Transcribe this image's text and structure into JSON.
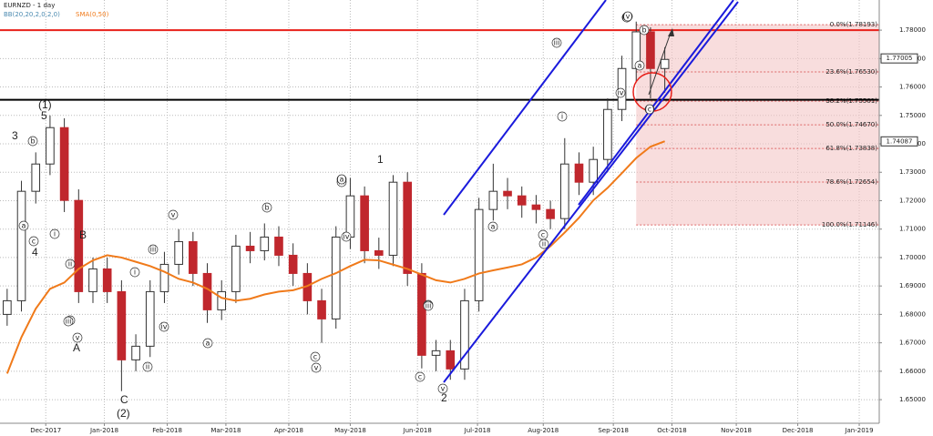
{
  "chart_data": {
    "type": "candlestick",
    "title": "EURNZD - 1 day",
    "indicators": [
      "BB(20,20,2,0,2,0)",
      "SMA(0,50)"
    ],
    "xlim": [
      -0.5,
      61
    ],
    "xticks": [
      {
        "value": 2.7,
        "label": "Dec-2017"
      },
      {
        "value": 6.8,
        "label": "Jan-2018"
      },
      {
        "value": 11.2,
        "label": "Feb-2018"
      },
      {
        "value": 15.3,
        "label": "Mar-2018"
      },
      {
        "value": 19.7,
        "label": "Apr-2018"
      },
      {
        "value": 24.0,
        "label": "May-2018"
      },
      {
        "value": 28.7,
        "label": "Jun-2018"
      },
      {
        "value": 32.9,
        "label": "Jul-2018"
      },
      {
        "value": 37.5,
        "label": "Aug-2018"
      },
      {
        "value": 42.4,
        "label": "Sep-2018"
      },
      {
        "value": 46.5,
        "label": "Oct-2018"
      },
      {
        "value": 51.0,
        "label": "Nov-2018"
      },
      {
        "value": 55.3,
        "label": "Dec-2018"
      },
      {
        "value": 59.6,
        "label": "Jan-2019"
      }
    ],
    "ylim": [
      1.6417,
      1.7906
    ],
    "yticks": [
      {
        "value": 1.65,
        "label": "1.65000"
      },
      {
        "value": 1.66,
        "label": "1.66000"
      },
      {
        "value": 1.67,
        "label": "1.67000"
      },
      {
        "value": 1.68,
        "label": "1.68000"
      },
      {
        "value": 1.69,
        "label": "1.69000"
      },
      {
        "value": 1.7,
        "label": "1.70000"
      },
      {
        "value": 1.71,
        "label": "1.71000"
      },
      {
        "value": 1.72,
        "label": "1.72000"
      },
      {
        "value": 1.73,
        "label": "1.73000"
      },
      {
        "value": 1.74,
        "label": "1.74000"
      },
      {
        "value": 1.75,
        "label": "1.75000"
      },
      {
        "value": 1.76,
        "label": "1.76000"
      },
      {
        "value": 1.77,
        "label": "1.77000"
      },
      {
        "value": 1.78,
        "label": "1.78000"
      }
    ],
    "grid": true,
    "x": [
      0,
      1,
      2,
      3,
      4,
      5,
      6,
      7,
      8,
      9,
      10,
      11,
      12,
      13,
      14,
      15,
      16,
      17,
      18,
      19,
      20,
      21,
      22,
      23,
      24,
      25,
      26,
      27,
      28,
      29,
      30,
      31,
      32,
      33,
      34,
      35,
      36,
      37,
      38,
      39,
      40,
      41,
      42,
      43,
      44,
      45,
      46
    ],
    "open": [
      1.68,
      1.6848,
      1.7233,
      1.7329,
      1.7457,
      1.7201,
      1.688,
      1.696,
      1.688,
      1.664,
      1.6688,
      1.688,
      1.6976,
      1.7056,
      1.6944,
      1.6816,
      1.688,
      1.704,
      1.7024,
      1.7072,
      1.7008,
      1.6944,
      1.6848,
      1.6784,
      1.7072,
      1.7217,
      1.7024,
      1.7008,
      1.7265,
      1.6944,
      1.6656,
      1.6672,
      1.6608,
      1.6848,
      1.7169,
      1.7233,
      1.7217,
      1.7185,
      1.7169,
      1.7137,
      1.7329,
      1.7265,
      1.7345,
      1.7521,
      1.7665,
      1.7794,
      1.7665
    ],
    "high": [
      1.689,
      1.727,
      1.737,
      1.75,
      1.749,
      1.724,
      1.7,
      1.7,
      1.692,
      1.673,
      1.692,
      1.702,
      1.71,
      1.709,
      1.698,
      1.692,
      1.708,
      1.709,
      1.712,
      1.711,
      1.705,
      1.698,
      1.689,
      1.711,
      1.728,
      1.725,
      1.707,
      1.729,
      1.73,
      1.698,
      1.671,
      1.671,
      1.689,
      1.721,
      1.733,
      1.728,
      1.725,
      1.722,
      1.72,
      1.742,
      1.737,
      1.739,
      1.756,
      1.771,
      1.783,
      1.781,
      1.774
    ],
    "low": [
      1.676,
      1.681,
      1.719,
      1.729,
      1.716,
      1.684,
      1.684,
      1.684,
      1.653,
      1.66,
      1.665,
      1.684,
      1.694,
      1.69,
      1.677,
      1.678,
      1.684,
      1.698,
      1.699,
      1.697,
      1.69,
      1.68,
      1.67,
      1.675,
      1.703,
      1.698,
      1.696,
      1.697,
      1.69,
      1.661,
      1.66,
      1.657,
      1.657,
      1.681,
      1.713,
      1.717,
      1.714,
      1.712,
      1.71,
      1.71,
      1.722,
      1.722,
      1.73,
      1.748,
      1.762,
      1.756,
      1.758
    ],
    "close": [
      1.6848,
      1.7233,
      1.7329,
      1.7457,
      1.7201,
      1.688,
      1.696,
      1.688,
      1.664,
      1.6688,
      1.688,
      1.6976,
      1.7056,
      1.6944,
      1.6816,
      1.688,
      1.704,
      1.7024,
      1.7072,
      1.7008,
      1.6944,
      1.6848,
      1.6784,
      1.7072,
      1.7217,
      1.7024,
      1.7008,
      1.7265,
      1.6944,
      1.6656,
      1.6672,
      1.6608,
      1.6848,
      1.7169,
      1.7233,
      1.7217,
      1.7185,
      1.7169,
      1.7137,
      1.7329,
      1.7265,
      1.7345,
      1.7521,
      1.7665,
      1.7794,
      1.7665,
      1.7697
    ],
    "up_color": "#ffffff",
    "down_color": "#c0272d",
    "sma": {
      "name": "SMA(0,50)",
      "color": "#f07a1a",
      "values": [
        1.6592,
        1.672,
        1.682,
        1.689,
        1.6912,
        1.696,
        1.699,
        1.7008,
        1.7,
        1.6985,
        1.697,
        1.695,
        1.6925,
        1.6912,
        1.689,
        1.6858,
        1.6848,
        1.6855,
        1.687,
        1.688,
        1.6885,
        1.69,
        1.6925,
        1.6945,
        1.697,
        1.6992,
        1.699,
        1.6975,
        1.696,
        1.694,
        1.692,
        1.6912,
        1.6925,
        1.6944,
        1.6955,
        1.6965,
        1.6976,
        1.7,
        1.704,
        1.7088,
        1.714,
        1.7201,
        1.7245,
        1.7297,
        1.735,
        1.739,
        1.7409
      ]
    },
    "hlines": [
      {
        "value": 1.78,
        "color": "#e8201a"
      },
      {
        "value": 1.7555,
        "color": "#000000"
      }
    ],
    "fib_levels": [
      {
        "value": 1.78193,
        "label": "0.0%(1.78193)"
      },
      {
        "value": 1.7653,
        "label": "23.6%(1.76530)"
      },
      {
        "value": 1.75501,
        "label": "38.2%(1.75501)"
      },
      {
        "value": 1.7467,
        "label": "50.0%(1.74670)"
      },
      {
        "value": 1.73838,
        "label": "61.8%(1.73838)"
      },
      {
        "value": 1.72654,
        "label": "78.6%(1.72654)"
      },
      {
        "value": 1.71146,
        "label": "100.0%(1.71146)"
      }
    ],
    "price_tags": [
      1.77005,
      1.74087
    ],
    "annotations": [
      "3",
      "(1)",
      "5",
      "4",
      "B",
      "A",
      "C",
      "(2)",
      "1",
      "2"
    ],
    "wave_labels": [
      "b",
      "a",
      "c",
      "i",
      "ii",
      "iv",
      "iii",
      "v",
      "i",
      "ii",
      "iii",
      "iv",
      "v",
      "a",
      "b",
      "c",
      "iii",
      "v",
      "iv",
      "b",
      "a",
      "c",
      "i",
      "ii",
      "iii",
      "v",
      "iv",
      "a",
      "b",
      "c",
      "iii",
      "v",
      "(a)",
      "(b)",
      "(c)",
      "(v)"
    ]
  }
}
